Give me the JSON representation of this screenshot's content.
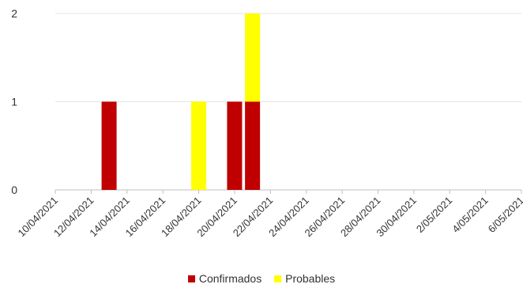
{
  "chart_data": {
    "type": "bar",
    "stacked": true,
    "title": "",
    "xlabel": "",
    "ylabel": "",
    "x_start": "10/04/2021",
    "x_end": "6/05/2021",
    "x_tick_labels": [
      "10/04/2021",
      "12/04/2021",
      "14/04/2021",
      "16/04/2021",
      "18/04/2021",
      "20/04/2021",
      "22/04/2021",
      "24/04/2021",
      "26/04/2021",
      "28/04/2021",
      "30/04/2021",
      "2/05/2021",
      "4/05/2021",
      "6/05/2021"
    ],
    "y_ticks": [
      "0",
      "1",
      "2"
    ],
    "ylim": [
      0,
      2
    ],
    "grid": true,
    "legend_position": "bottom",
    "categories": [
      "13/04/2021",
      "18/04/2021",
      "20/04/2021",
      "21/04/2021"
    ],
    "series": [
      {
        "name": "Confirmados",
        "color": "#c00000",
        "values": [
          1,
          0,
          1,
          1
        ]
      },
      {
        "name": "Probables",
        "color": "#ffff00",
        "values": [
          0,
          1,
          0,
          1
        ]
      }
    ]
  }
}
